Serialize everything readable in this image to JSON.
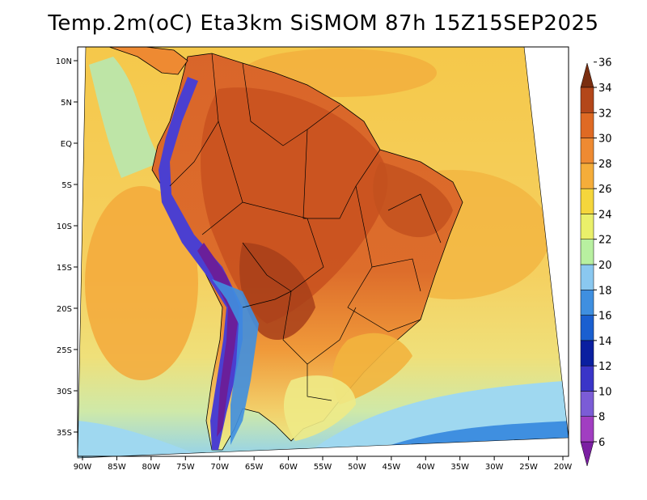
{
  "title": "Temp.2m(oC) Eta3km SiSMOM 87h 15Z15SEP2025",
  "map": {
    "variable": "2 m air temperature",
    "units": "oC",
    "projection": "conic",
    "lon_labels": [
      "90W",
      "85W",
      "80W",
      "75W",
      "70W",
      "65W",
      "60W",
      "55W",
      "50W",
      "45W",
      "40W",
      "35W",
      "30W",
      "25W",
      "20W"
    ],
    "lat_labels": [
      "10N",
      "5N",
      "EQ",
      "5S",
      "10S",
      "15S",
      "20S",
      "25S",
      "30S",
      "35S"
    ]
  },
  "colorbar": {
    "levels": [
      "6",
      "8",
      "10",
      "12",
      "14",
      "16",
      "18",
      "20",
      "22",
      "24",
      "26",
      "28",
      "30",
      "32",
      "34",
      "36"
    ],
    "colors": [
      "#7b1fa2",
      "#a13ec1",
      "#7b5cd6",
      "#3a35c8",
      "#0a1fa0",
      "#1a5fd0",
      "#3f8fe0",
      "#8ac8f0",
      "#b8f0a0",
      "#eaf06a",
      "#f5d63c",
      "#f5ad3a",
      "#ee8a32",
      "#df6a24",
      "#b3471a",
      "#7a2e10"
    ]
  },
  "colors": {
    "ocean_warm": "#f5c84a",
    "ocean_mild": "#efe07a",
    "land_hot": "#d9652a",
    "andes_cold": "#4b3fd0",
    "southern_cool": "#9fd8f0"
  }
}
